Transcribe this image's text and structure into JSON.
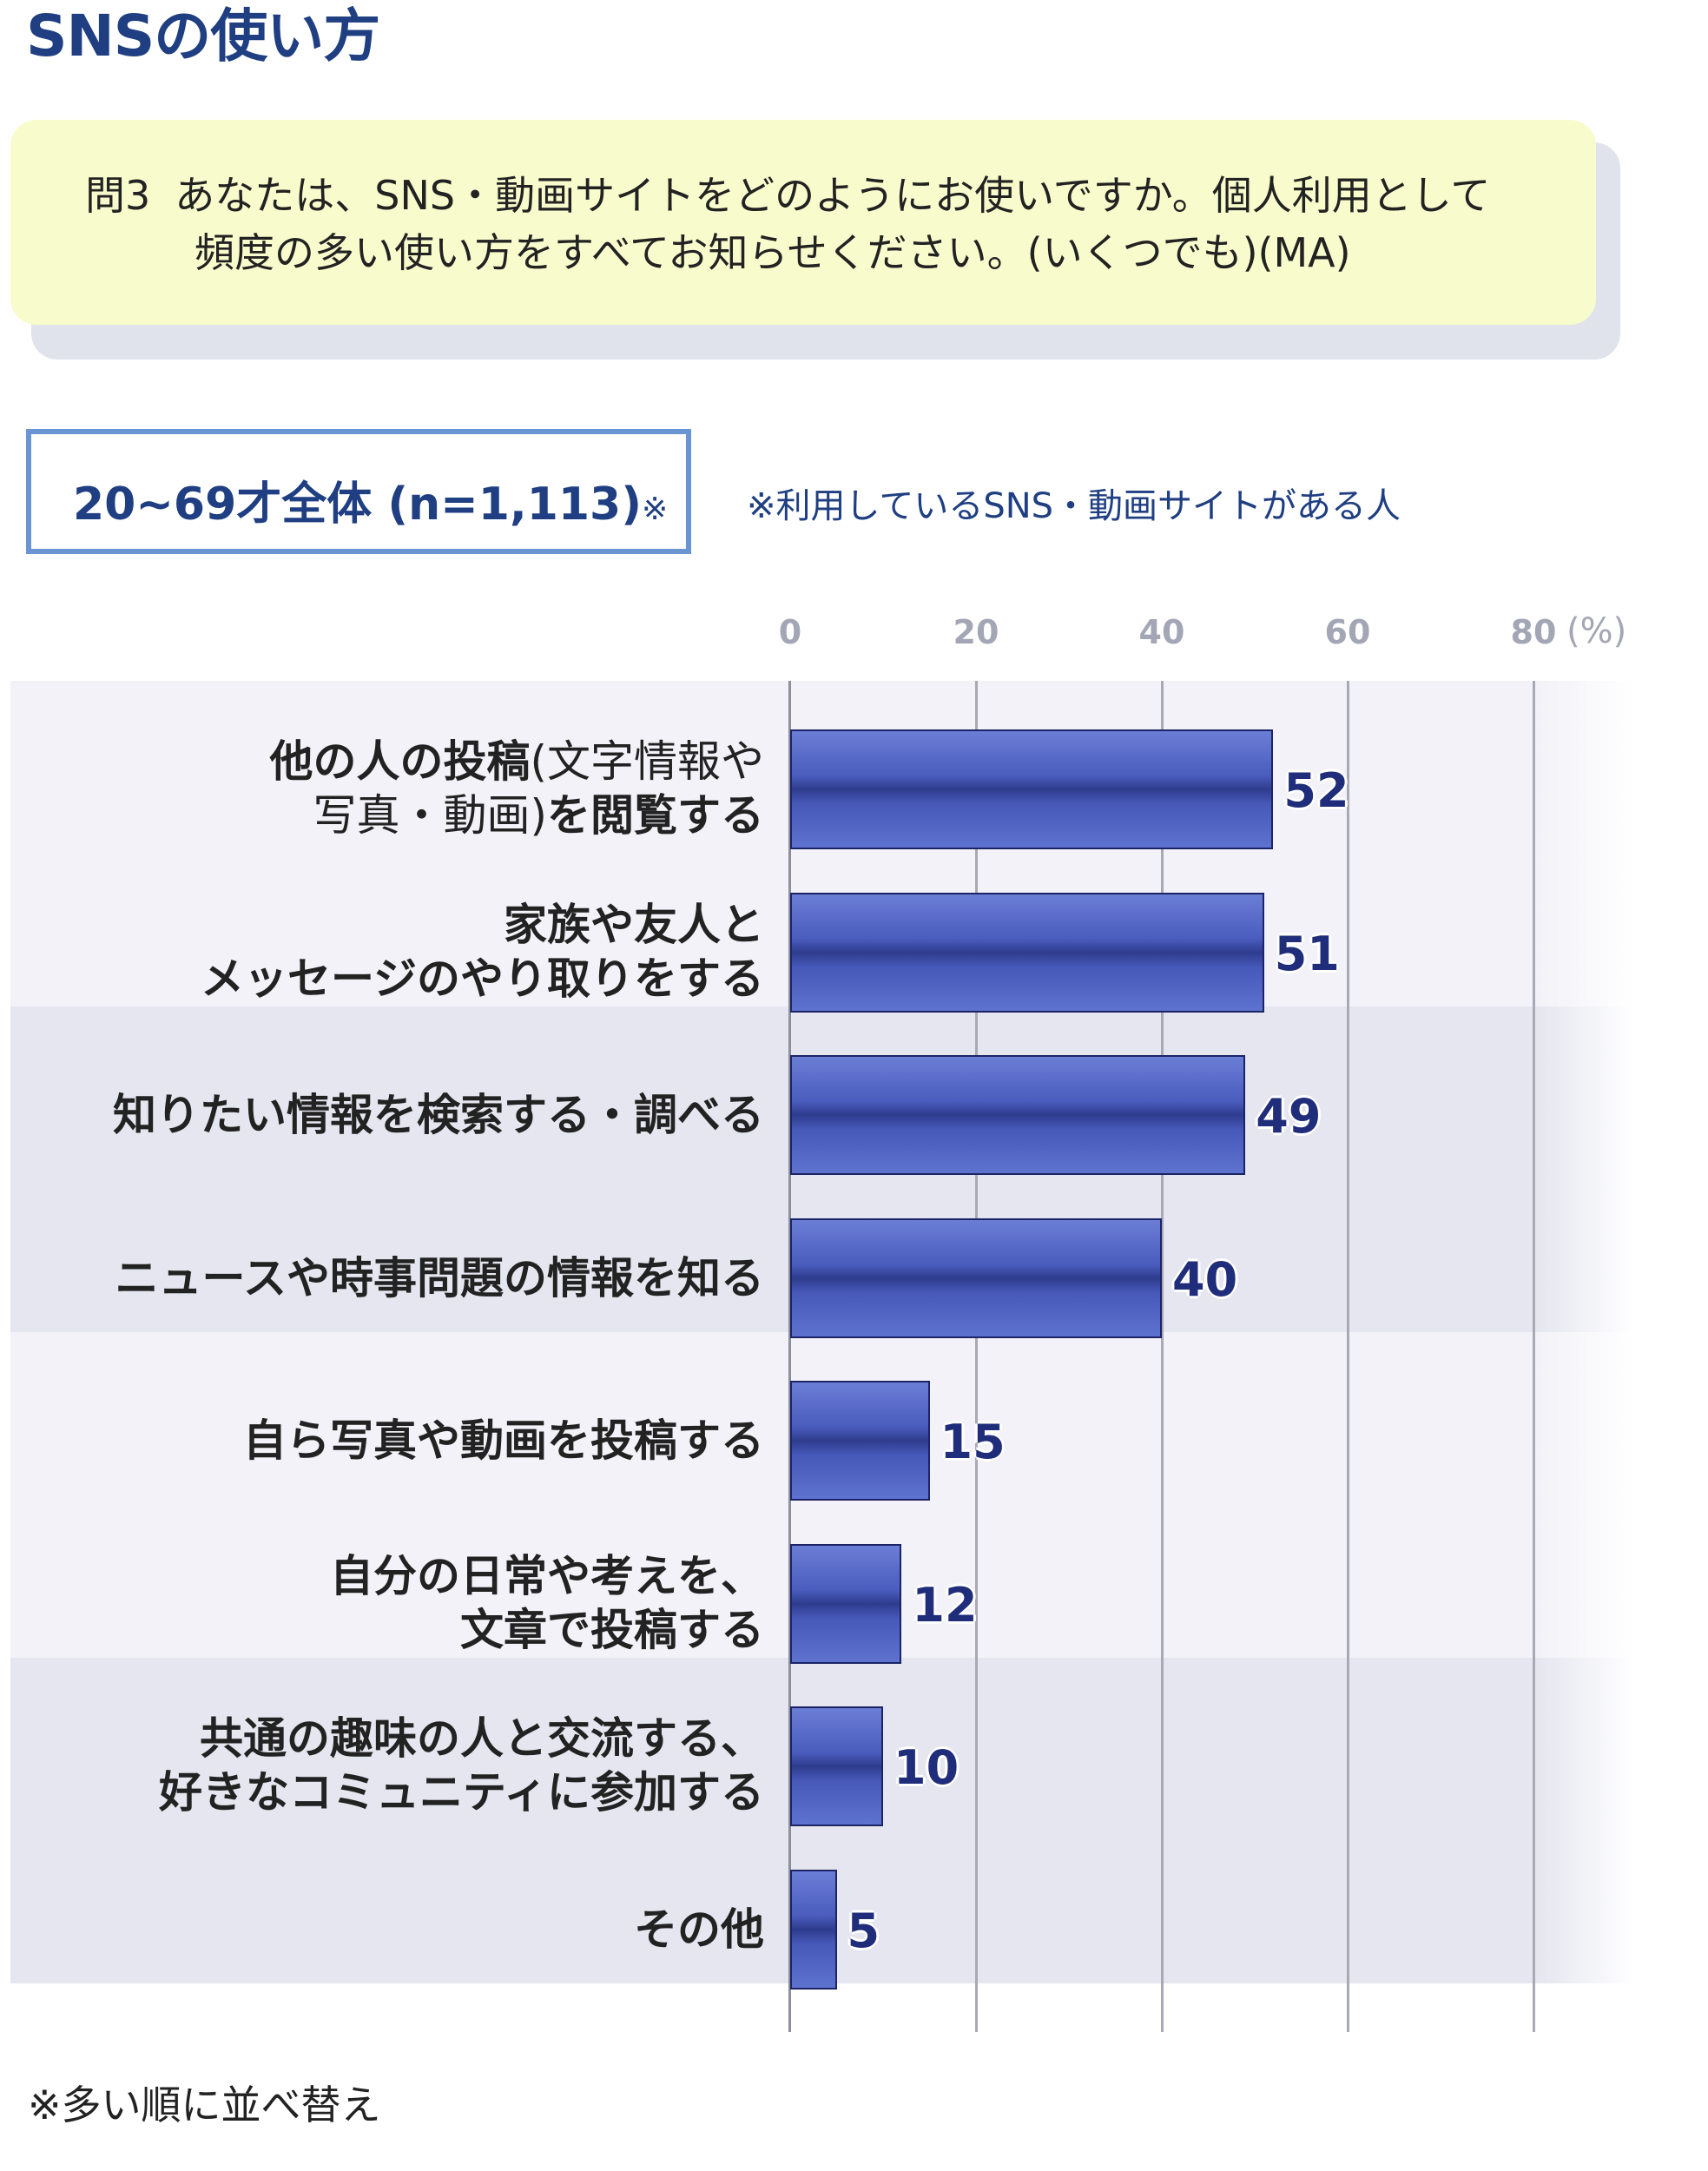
{
  "page": {
    "title": "SNSの使い方",
    "question_label": "問3",
    "question_line1": "あなたは、SNS・動画サイトをどのようにお使いですか。個人利用として",
    "question_line2": "頻度の多い使い方をすべてお知らせください。(いくつでも)(MA)",
    "sample_label": "20~69才全体 (n=1,113)",
    "sample_mark": "※",
    "sample_note": "※利用しているSNS・動画サイトがある人",
    "footnote": "※多い順に並べ替え"
  },
  "chart_data": {
    "type": "bar",
    "orientation": "horizontal",
    "unit": "(%)",
    "xlim": [
      0,
      80
    ],
    "ticks": [
      "0",
      "20",
      "40",
      "60",
      "80"
    ],
    "grid": true,
    "categories": [
      {
        "bold": "他の人の投稿",
        "thin": "(文字情報や",
        "line2_thin": "写真・動画)",
        "line2_bold": "を閲覧する"
      },
      {
        "line1": "家族や友人と",
        "line2": "メッセージのやり取りをする"
      },
      {
        "line1": "知りたい情報を検索する・調べる"
      },
      {
        "line1": "ニュースや時事問題の情報を知る"
      },
      {
        "line1": "自ら写真や動画を投稿する"
      },
      {
        "line1": "自分の日常や考えを、",
        "line2": "文章で投稿する"
      },
      {
        "line1": "共通の趣味の人と交流する、",
        "line2": "好きなコミュニティに参加する"
      },
      {
        "line1": "その他"
      }
    ],
    "values": [
      52,
      51,
      49,
      40,
      15,
      12,
      10,
      5
    ],
    "labels": [
      "52",
      "51",
      "49",
      "40",
      "15",
      "12",
      "10",
      "5"
    ],
    "colors": {
      "bar": "#4a5cbd",
      "value_text": "#1f2d7a",
      "title": "#1f3f82"
    }
  }
}
